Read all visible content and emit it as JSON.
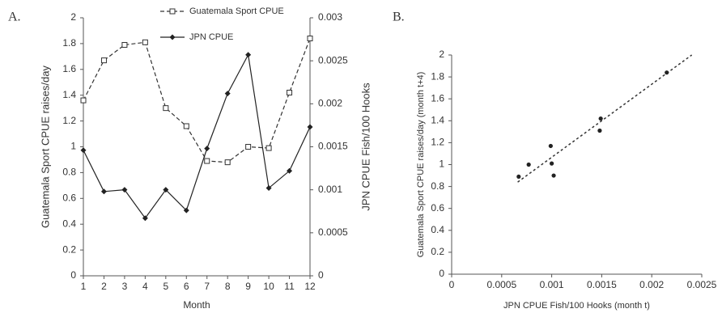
{
  "chart_data": [
    {
      "type": "line",
      "panel_label": "A.",
      "x_label": "Month",
      "y_label": "Guatemala Sport CPUE raises/day",
      "y2_label": "JPN CPUE Fish/100 Hooks",
      "x": [
        1,
        2,
        3,
        4,
        5,
        6,
        7,
        8,
        9,
        10,
        11,
        12
      ],
      "xlim": [
        1,
        12
      ],
      "xticks": [
        1,
        2,
        3,
        4,
        5,
        6,
        7,
        8,
        9,
        10,
        11,
        12
      ],
      "ylim": [
        0,
        2
      ],
      "yticks": [
        0,
        0.2,
        0.4,
        0.6,
        0.8,
        1,
        1.2,
        1.4,
        1.6,
        1.8,
        2
      ],
      "y2lim": [
        0,
        0.003
      ],
      "y2ticks": [
        0,
        0.0005,
        0.001,
        0.0015,
        0.002,
        0.0025,
        0.003
      ],
      "series": [
        {
          "name": "Guatemala Sport CPUE",
          "color": "#333333",
          "dashed": true,
          "marker": "open-square",
          "values": [
            1.36,
            1.67,
            1.79,
            1.81,
            1.3,
            1.16,
            0.89,
            0.88,
            1.0,
            0.99,
            1.42,
            1.84
          ]
        },
        {
          "name": "JPN CPUE",
          "color": "#222222",
          "dashed": false,
          "marker": "diamond",
          "axis": "y2",
          "values": [
            0.00146,
            0.00098,
            0.001,
            0.00067,
            0.001,
            0.00076,
            0.00148,
            0.00212,
            0.00257,
            0.00102,
            0.00122,
            0.00173
          ]
        }
      ]
    },
    {
      "type": "scatter",
      "panel_label": "B.",
      "x_label": "JPN CPUE  Fish/100 Hooks (month t)",
      "y_label": "Guatemala Sport CPUE raises/day (month t+4)",
      "xlim": [
        0,
        0.0025
      ],
      "xticks": [
        0,
        0.0005,
        0.001,
        0.0015,
        0.002,
        0.0025
      ],
      "ylim": [
        0,
        2
      ],
      "yticks": [
        0,
        0.2,
        0.4,
        0.6,
        0.8,
        1,
        1.2,
        1.4,
        1.6,
        1.8,
        2
      ],
      "color": "#222222",
      "x": [
        0.00067,
        0.00077,
        0.00099,
        0.001,
        0.00102,
        0.00148,
        0.00149,
        0.00215
      ],
      "values": [
        0.89,
        1.0,
        1.17,
        1.01,
        0.9,
        1.31,
        1.42,
        1.84
      ],
      "trendline": {
        "x": [
          0.00066,
          0.0024
        ],
        "y": [
          0.84,
          2.0
        ]
      }
    }
  ]
}
